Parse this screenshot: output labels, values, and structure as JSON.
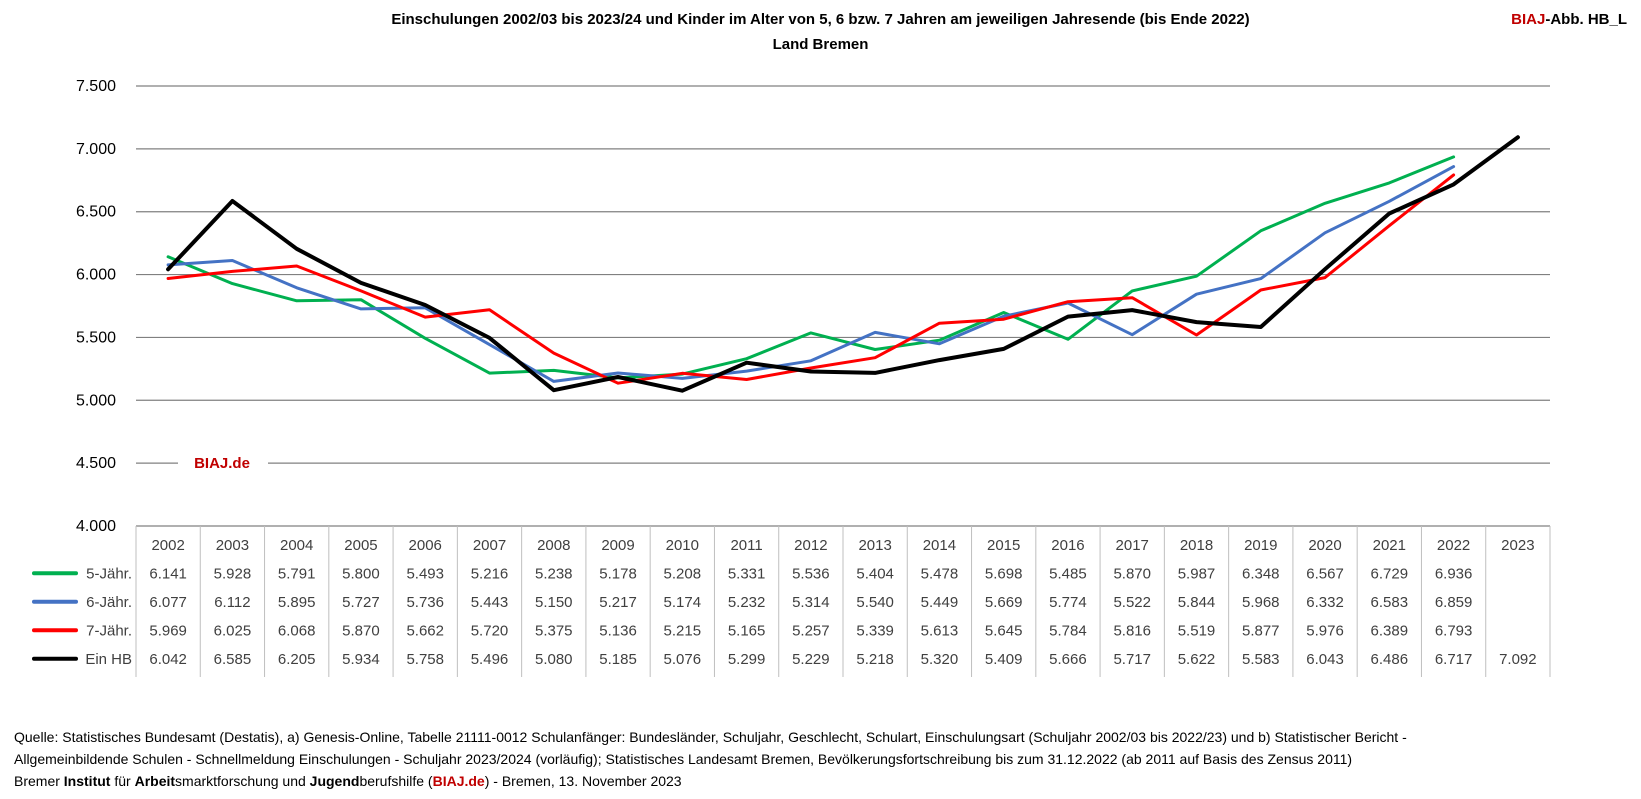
{
  "header": {
    "title_line1": "Einschulungen 2002/03 bis 2023/24 und Kinder im Alter von 5, 6 bzw. 7 Jahren am  jeweiligen Jahresende (bis Ende 2022)",
    "title_line2": "Land Bremen",
    "corner_brand": "BIAJ",
    "corner_rest": "-Abb. HB_L"
  },
  "watermark": "BIAJ.de",
  "colors": {
    "five": "#00b050",
    "six": "#4472c4",
    "seven": "#ff0000",
    "ein": "#000000",
    "brand": "#c00000",
    "grid": "#808080"
  },
  "chart_data": {
    "type": "line",
    "title": "Einschulungen 2002/03 bis 2023/24 und Kinder im Alter von 5, 6 bzw. 7 Jahren am  jeweiligen Jahresende (bis Ende 2022) — Land Bremen",
    "categories": [
      "2002",
      "2003",
      "2004",
      "2005",
      "2006",
      "2007",
      "2008",
      "2009",
      "2010",
      "2011",
      "2012",
      "2013",
      "2014",
      "2015",
      "2016",
      "2017",
      "2018",
      "2019",
      "2020",
      "2021",
      "2022",
      "2023"
    ],
    "ylim": [
      4000,
      7500
    ],
    "yticks": [
      4000,
      4500,
      5000,
      5500,
      6000,
      6500,
      7000,
      7500
    ],
    "ytick_labels": [
      "4.000",
      "4.500",
      "5.000",
      "5.500",
      "6.000",
      "6.500",
      "7.000",
      "7.500"
    ],
    "grid": true,
    "legend": "data-table-left",
    "series": [
      {
        "key": "five",
        "name": "5-Jähr.",
        "color": "#00b050",
        "values": [
          6141,
          5928,
          5791,
          5800,
          5493,
          5216,
          5238,
          5178,
          5208,
          5331,
          5536,
          5404,
          5478,
          5698,
          5485,
          5870,
          5987,
          6348,
          6567,
          6729,
          6936,
          null
        ],
        "labels": [
          "6.141",
          "5.928",
          "5.791",
          "5.800",
          "5.493",
          "5.216",
          "5.238",
          "5.178",
          "5.208",
          "5.331",
          "5.536",
          "5.404",
          "5.478",
          "5.698",
          "5.485",
          "5.870",
          "5.987",
          "6.348",
          "6.567",
          "6.729",
          "6.936",
          ""
        ]
      },
      {
        "key": "six",
        "name": "6-Jähr.",
        "color": "#4472c4",
        "values": [
          6077,
          6112,
          5895,
          5727,
          5736,
          5443,
          5150,
          5217,
          5174,
          5232,
          5314,
          5540,
          5449,
          5669,
          5774,
          5522,
          5844,
          5968,
          6332,
          6583,
          6859,
          null
        ],
        "labels": [
          "6.077",
          "6.112",
          "5.895",
          "5.727",
          "5.736",
          "5.443",
          "5.150",
          "5.217",
          "5.174",
          "5.232",
          "5.314",
          "5.540",
          "5.449",
          "5.669",
          "5.774",
          "5.522",
          "5.844",
          "5.968",
          "6.332",
          "6.583",
          "6.859",
          ""
        ]
      },
      {
        "key": "seven",
        "name": "7-Jähr.",
        "color": "#ff0000",
        "values": [
          5969,
          6025,
          6068,
          5870,
          5662,
          5720,
          5375,
          5136,
          5215,
          5165,
          5257,
          5339,
          5613,
          5645,
          5784,
          5816,
          5519,
          5877,
          5976,
          6389,
          6793,
          null
        ],
        "labels": [
          "5.969",
          "6.025",
          "6.068",
          "5.870",
          "5.662",
          "5.720",
          "5.375",
          "5.136",
          "5.215",
          "5.165",
          "5.257",
          "5.339",
          "5.613",
          "5.645",
          "5.784",
          "5.816",
          "5.519",
          "5.877",
          "5.976",
          "6.389",
          "6.793",
          ""
        ]
      },
      {
        "key": "ein",
        "name": "Ein HB",
        "color": "#000000",
        "values": [
          6042,
          6585,
          6205,
          5934,
          5758,
          5496,
          5080,
          5185,
          5076,
          5299,
          5229,
          5218,
          5320,
          5409,
          5666,
          5717,
          5622,
          5583,
          6043,
          6486,
          6717,
          7092
        ],
        "labels": [
          "6.042",
          "6.585",
          "6.205",
          "5.934",
          "5.758",
          "5.496",
          "5.080",
          "5.185",
          "5.076",
          "5.299",
          "5.229",
          "5.218",
          "5.320",
          "5.409",
          "5.666",
          "5.717",
          "5.622",
          "5.583",
          "6.043",
          "6.486",
          "6.717",
          "7.092"
        ]
      }
    ]
  },
  "footer": {
    "line1": "Quelle: Statistisches Bundesamt (Destatis), a) Genesis-Online, Tabelle 21111-0012 Schulanfänger: Bundesländer, Schuljahr, Geschlecht, Schulart, Einschulungsart (Schuljahr 2002/03 bis 2022/23) und b) Statistischer Bericht -",
    "line2": "Allgemeinbildende Schulen - Schnellmeldung Einschulungen - Schuljahr 2023/2024 (vorläufig); Statistisches Landesamt Bremen, Bevölkerungsfortschreibung bis zum 31.12.2022 (ab 2011 auf Basis des Zensus 2011)",
    "line3": {
      "p1": "Bremer ",
      "b1": "Institut",
      "p2": " für ",
      "b2": "Arbeit",
      "p3": "smarktforschung und ",
      "b3": "Jugend",
      "p4": "berufshilfe (",
      "brand": "BIAJ.de",
      "p5": ") - Bremen, 13. November 2023"
    }
  }
}
